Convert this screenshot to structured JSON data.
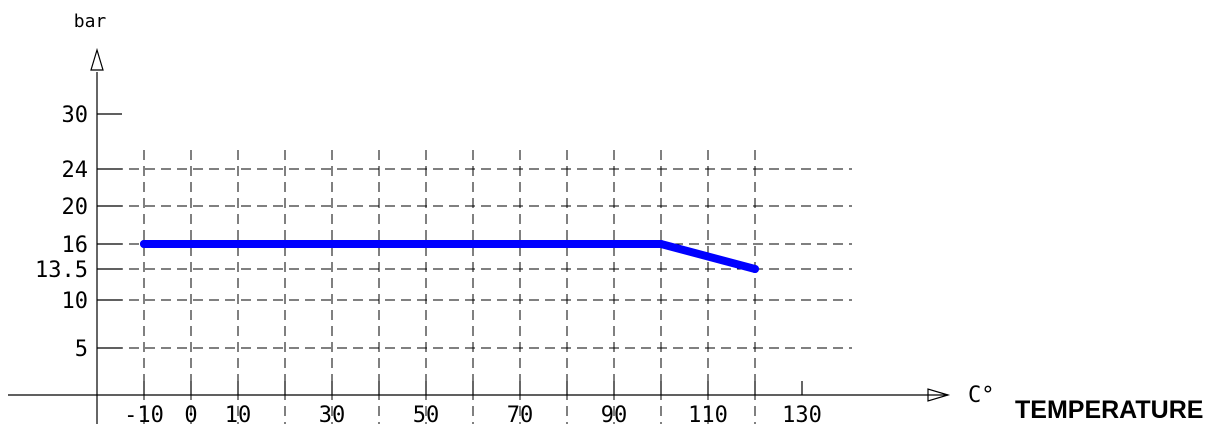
{
  "chart_data": {
    "type": "line",
    "xlabel": "TEMPERATURE",
    "x_unit": "C°",
    "y_unit": "bar",
    "x_ticks": [
      -10,
      0,
      10,
      30,
      50,
      70,
      90,
      110,
      130
    ],
    "x_ticks_labels": [
      "-10",
      "0",
      "10",
      "30",
      "50",
      "70",
      "90",
      "110",
      "130"
    ],
    "y_ticks": [
      5,
      10,
      13.5,
      16,
      20,
      24,
      30
    ],
    "y_ticks_labels": [
      "5",
      "10",
      "13.5",
      "16",
      "20",
      "24",
      "30"
    ],
    "x_grid": [
      -10,
      0,
      10,
      20,
      30,
      40,
      50,
      60,
      70,
      80,
      90,
      100,
      110,
      120
    ],
    "y_grid": [
      5,
      10,
      13.5,
      16,
      20,
      24
    ],
    "grid": true,
    "series": [
      {
        "color": "#0000ff",
        "x": [
          -10,
          100,
          120
        ],
        "y": [
          16,
          16,
          13.5
        ]
      }
    ]
  }
}
